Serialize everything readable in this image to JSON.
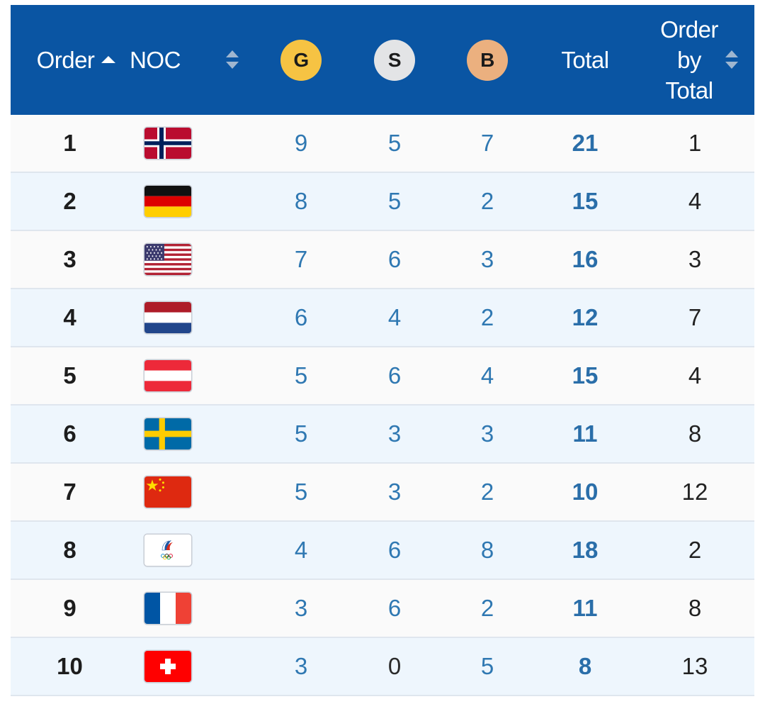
{
  "header": {
    "order_label": "Order",
    "noc_label": "NOC",
    "gold_label": "G",
    "silver_label": "S",
    "bronze_label": "B",
    "total_label": "Total",
    "order_by_total_line1": "Order",
    "order_by_total_line2": "by",
    "order_by_total_line3": "Total"
  },
  "colors": {
    "header_bg": "#0a55a3",
    "gold": "#f6c343",
    "silver": "#e3e4e6",
    "bronze": "#ebb07f",
    "value_blue": "#2f78b2"
  },
  "rows": [
    {
      "order": "1",
      "flag": "norway-flag-icon",
      "gold": "9",
      "silver": "5",
      "bronze": "7",
      "total": "21",
      "order_by_total": "1"
    },
    {
      "order": "2",
      "flag": "germany-flag-icon",
      "gold": "8",
      "silver": "5",
      "bronze": "2",
      "total": "15",
      "order_by_total": "4"
    },
    {
      "order": "3",
      "flag": "usa-flag-icon",
      "gold": "7",
      "silver": "6",
      "bronze": "3",
      "total": "16",
      "order_by_total": "3"
    },
    {
      "order": "4",
      "flag": "netherlands-flag-icon",
      "gold": "6",
      "silver": "4",
      "bronze": "2",
      "total": "12",
      "order_by_total": "7"
    },
    {
      "order": "5",
      "flag": "austria-flag-icon",
      "gold": "5",
      "silver": "6",
      "bronze": "4",
      "total": "15",
      "order_by_total": "4"
    },
    {
      "order": "6",
      "flag": "sweden-flag-icon",
      "gold": "5",
      "silver": "3",
      "bronze": "3",
      "total": "11",
      "order_by_total": "8"
    },
    {
      "order": "7",
      "flag": "china-flag-icon",
      "gold": "5",
      "silver": "3",
      "bronze": "2",
      "total": "10",
      "order_by_total": "12"
    },
    {
      "order": "8",
      "flag": "roc-flag-icon",
      "gold": "4",
      "silver": "6",
      "bronze": "8",
      "total": "18",
      "order_by_total": "2"
    },
    {
      "order": "9",
      "flag": "france-flag-icon",
      "gold": "3",
      "silver": "6",
      "bronze": "2",
      "total": "11",
      "order_by_total": "8"
    },
    {
      "order": "10",
      "flag": "switzerland-flag-icon",
      "gold": "3",
      "silver": "0",
      "bronze": "5",
      "total": "8",
      "order_by_total": "13"
    }
  ]
}
